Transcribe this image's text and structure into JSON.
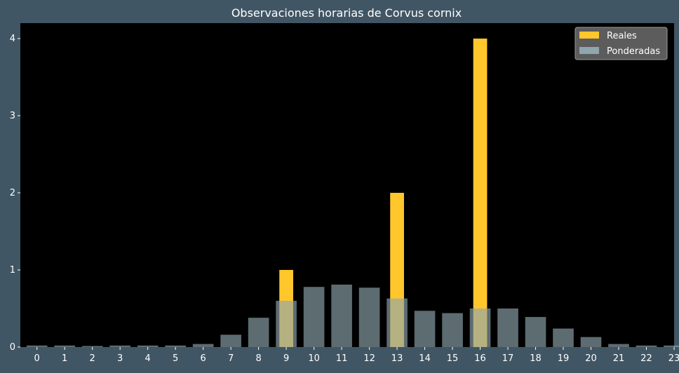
{
  "chart_data": {
    "type": "bar",
    "title": "Observaciones horarias de Corvus cornix",
    "xlabel": "",
    "ylabel": "",
    "categories": [
      "0",
      "1",
      "2",
      "3",
      "4",
      "5",
      "6",
      "7",
      "8",
      "9",
      "10",
      "11",
      "12",
      "13",
      "14",
      "15",
      "16",
      "17",
      "18",
      "19",
      "20",
      "21",
      "22",
      "23"
    ],
    "ylim": [
      0,
      4.2
    ],
    "yticks": [
      0,
      1,
      2,
      3,
      4
    ],
    "grid": false,
    "legend_position": "top-right",
    "series": [
      {
        "name": "Reales",
        "color": "#ffc72c",
        "values": [
          0,
          0,
          0,
          0,
          0,
          0,
          0,
          0,
          0,
          1,
          0,
          0,
          0,
          2,
          0,
          0,
          4,
          0,
          0,
          0,
          0,
          0,
          0,
          0
        ]
      },
      {
        "name": "Ponderadas",
        "color": "#8fa6ad",
        "values": [
          0.02,
          0.02,
          0.01,
          0.02,
          0.02,
          0.02,
          0.04,
          0.16,
          0.38,
          0.6,
          0.78,
          0.81,
          0.77,
          0.63,
          0.47,
          0.44,
          0.5,
          0.5,
          0.39,
          0.24,
          0.13,
          0.04,
          0.02,
          0.02
        ]
      }
    ]
  }
}
